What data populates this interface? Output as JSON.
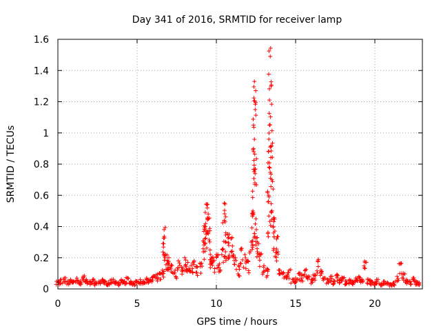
{
  "chart_data": {
    "type": "scatter",
    "title": "Day 341 of 2016, SRMTID for receiver lamp",
    "xlabel": "GPS time / hours",
    "ylabel": "SRMTID / TECUs",
    "xlim": [
      0,
      23
    ],
    "ylim": [
      0,
      1.6
    ],
    "grid": true,
    "x_ticks": [
      0,
      5,
      10,
      15,
      20
    ],
    "x_tick_labels": [
      "0",
      "5",
      "10",
      "15",
      "20"
    ],
    "y_ticks": [
      0,
      0.2,
      0.4,
      0.6,
      0.8,
      1.0,
      1.2,
      1.4,
      1.6
    ],
    "y_tick_labels": [
      "0",
      "0.2",
      "0.4",
      "0.6",
      "0.8",
      "1",
      "1.2",
      "1.4",
      "1.6"
    ],
    "marker": "+",
    "series": [
      {
        "name": "SRMTID",
        "color": "#ff0000",
        "x": [
          0.0,
          0.2,
          0.4,
          0.6,
          0.8,
          1.0,
          1.2,
          1.4,
          1.6,
          1.8,
          2.0,
          2.2,
          2.4,
          2.6,
          2.8,
          3.0,
          3.2,
          3.4,
          3.6,
          3.8,
          4.0,
          4.2,
          4.4,
          4.6,
          4.8,
          5.0,
          5.2,
          5.4,
          5.6,
          5.8,
          6.0,
          6.2,
          6.4,
          6.6,
          6.7,
          6.8,
          6.9,
          7.0,
          7.2,
          7.4,
          7.6,
          7.8,
          8.0,
          8.2,
          8.4,
          8.6,
          8.8,
          9.0,
          9.2,
          9.3,
          9.4,
          9.5,
          9.6,
          9.7,
          9.8,
          10.0,
          10.2,
          10.4,
          10.5,
          10.6,
          10.8,
          11.0,
          11.2,
          11.4,
          11.6,
          11.8,
          12.0,
          12.2,
          12.3,
          12.35,
          12.4,
          12.45,
          12.5,
          12.6,
          12.8,
          13.0,
          13.2,
          13.3,
          13.35,
          13.4,
          13.45,
          13.5,
          13.6,
          13.8,
          14.0,
          14.2,
          14.4,
          14.6,
          14.8,
          15.0,
          15.2,
          15.4,
          15.6,
          15.8,
          16.0,
          16.2,
          16.4,
          16.6,
          16.8,
          17.0,
          17.2,
          17.4,
          17.6,
          17.8,
          18.0,
          18.2,
          18.4,
          18.6,
          18.8,
          19.0,
          19.2,
          19.4,
          19.6,
          19.8,
          20.0,
          20.2,
          20.4,
          20.6,
          20.8,
          21.0,
          21.2,
          21.4,
          21.6,
          21.8,
          22.0,
          22.2,
          22.4,
          22.6,
          22.8
        ],
        "y": [
          0.05,
          0.06,
          0.07,
          0.05,
          0.06,
          0.05,
          0.07,
          0.05,
          0.08,
          0.06,
          0.05,
          0.06,
          0.04,
          0.05,
          0.06,
          0.05,
          0.04,
          0.06,
          0.05,
          0.04,
          0.06,
          0.05,
          0.07,
          0.05,
          0.04,
          0.05,
          0.06,
          0.05,
          0.07,
          0.06,
          0.08,
          0.09,
          0.1,
          0.12,
          0.38,
          0.22,
          0.18,
          0.2,
          0.15,
          0.12,
          0.18,
          0.14,
          0.2,
          0.17,
          0.15,
          0.18,
          0.14,
          0.16,
          0.3,
          0.4,
          0.54,
          0.45,
          0.25,
          0.2,
          0.18,
          0.22,
          0.16,
          0.25,
          0.55,
          0.3,
          0.35,
          0.33,
          0.2,
          0.15,
          0.26,
          0.22,
          0.18,
          0.3,
          0.5,
          0.88,
          1.33,
          1.15,
          0.45,
          0.3,
          0.22,
          0.15,
          0.13,
          0.6,
          1.05,
          1.49,
          1.3,
          0.7,
          0.45,
          0.32,
          0.12,
          0.1,
          0.08,
          0.12,
          0.06,
          0.07,
          0.1,
          0.09,
          0.12,
          0.08,
          0.06,
          0.09,
          0.18,
          0.12,
          0.07,
          0.06,
          0.08,
          0.05,
          0.09,
          0.06,
          0.07,
          0.05,
          0.06,
          0.05,
          0.07,
          0.08,
          0.06,
          0.17,
          0.06,
          0.05,
          0.04,
          0.06,
          0.03,
          0.05,
          0.04,
          0.03,
          0.04,
          0.08,
          0.16,
          0.1,
          0.06,
          0.05,
          0.07,
          0.05,
          0.04
        ]
      }
    ]
  }
}
